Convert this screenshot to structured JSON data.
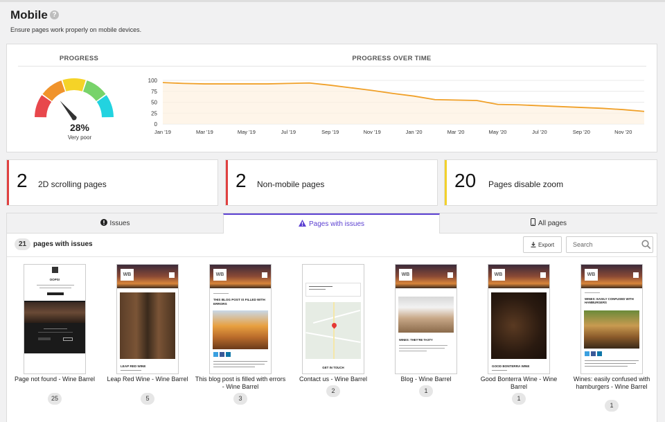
{
  "header": {
    "title": "Mobile",
    "help_icon": "?",
    "subtitle": "Ensure pages work properly on mobile devices."
  },
  "progress": {
    "heading": "PROGRESS",
    "percent_text": "28%",
    "percent_value": 28,
    "rating": "Very poor",
    "gauge_colors": [
      "#e8474c",
      "#f0932b",
      "#f5d327",
      "#78d36a",
      "#22d3e0"
    ]
  },
  "over_time": {
    "heading": "PROGRESS OVER TIME",
    "line_color": "#f0a028"
  },
  "chart_data": {
    "type": "line",
    "title": "PROGRESS OVER TIME",
    "x_ticks": [
      "Jan '19",
      "Mar '19",
      "May '19",
      "Jul '19",
      "Sep '19",
      "Nov '19",
      "Jan '20",
      "Mar '20",
      "May '20",
      "Jul '20",
      "Sep '20",
      "Nov '20"
    ],
    "y_ticks": [
      "0",
      "25",
      "50",
      "75",
      "100"
    ],
    "ylim": [
      0,
      100
    ],
    "xlim": [
      0,
      23
    ],
    "x": [
      0,
      1,
      2,
      3,
      4,
      5,
      6,
      7,
      8,
      9,
      10,
      11,
      12,
      13,
      14,
      15,
      16,
      17,
      18,
      19,
      20,
      21,
      22,
      23
    ],
    "y": [
      95,
      93,
      92,
      92,
      92,
      92,
      93,
      94,
      89,
      83,
      77,
      70,
      64,
      56,
      55,
      54,
      45,
      44,
      42,
      40,
      38,
      36,
      33,
      29
    ],
    "grid": "horizontal"
  },
  "stats": [
    {
      "number": "2",
      "label": "2D scrolling pages",
      "color": "#e04040"
    },
    {
      "number": "2",
      "label": "Non-mobile pages",
      "color": "#e04040"
    },
    {
      "number": "20",
      "label": "Pages disable zoom",
      "color": "#f2d12b"
    }
  ],
  "tabs": [
    {
      "label": "Issues",
      "icon": "alert-circle-icon",
      "glyph": "❗"
    },
    {
      "label": "Pages with issues",
      "icon": "warning-triangle-icon",
      "glyph": "▲"
    },
    {
      "label": "All pages",
      "icon": "mobile-phone-icon",
      "glyph": "▯"
    }
  ],
  "list": {
    "count": "21",
    "count_label": "pages with issues",
    "export_label": "Export",
    "search_placeholder": "Search"
  },
  "pages": [
    {
      "title": "Page not found - Wine Barrel",
      "issues": "25",
      "preview_heading": "OOPS!"
    },
    {
      "title": "Leap Red Wine - Wine Barrel",
      "issues": "5",
      "preview_heading": "LEAP RED WINE"
    },
    {
      "title": "This blog post is filled with errors - Wine Barrel",
      "issues": "3",
      "preview_heading": "THIS BLOG POST IS FILLED WITH ERRORS"
    },
    {
      "title": "Contact us - Wine Barrel",
      "issues": "2",
      "preview_heading": "GET IN TOUCH"
    },
    {
      "title": "Blog - Wine Barrel",
      "issues": "1",
      "preview_heading": "WINES: THEY'RE TASTY"
    },
    {
      "title": "Good Bonterra Wine - Wine Barrel",
      "issues": "1",
      "preview_heading": "GOOD BONTERRA WINE"
    },
    {
      "title": "Wines: easily confused with hamburgers - Wine Barrel",
      "issues": "1",
      "preview_heading": "WINES: EASILY CONFUSED WITH HAMBURGERS"
    }
  ],
  "thumb_logo": "WB"
}
